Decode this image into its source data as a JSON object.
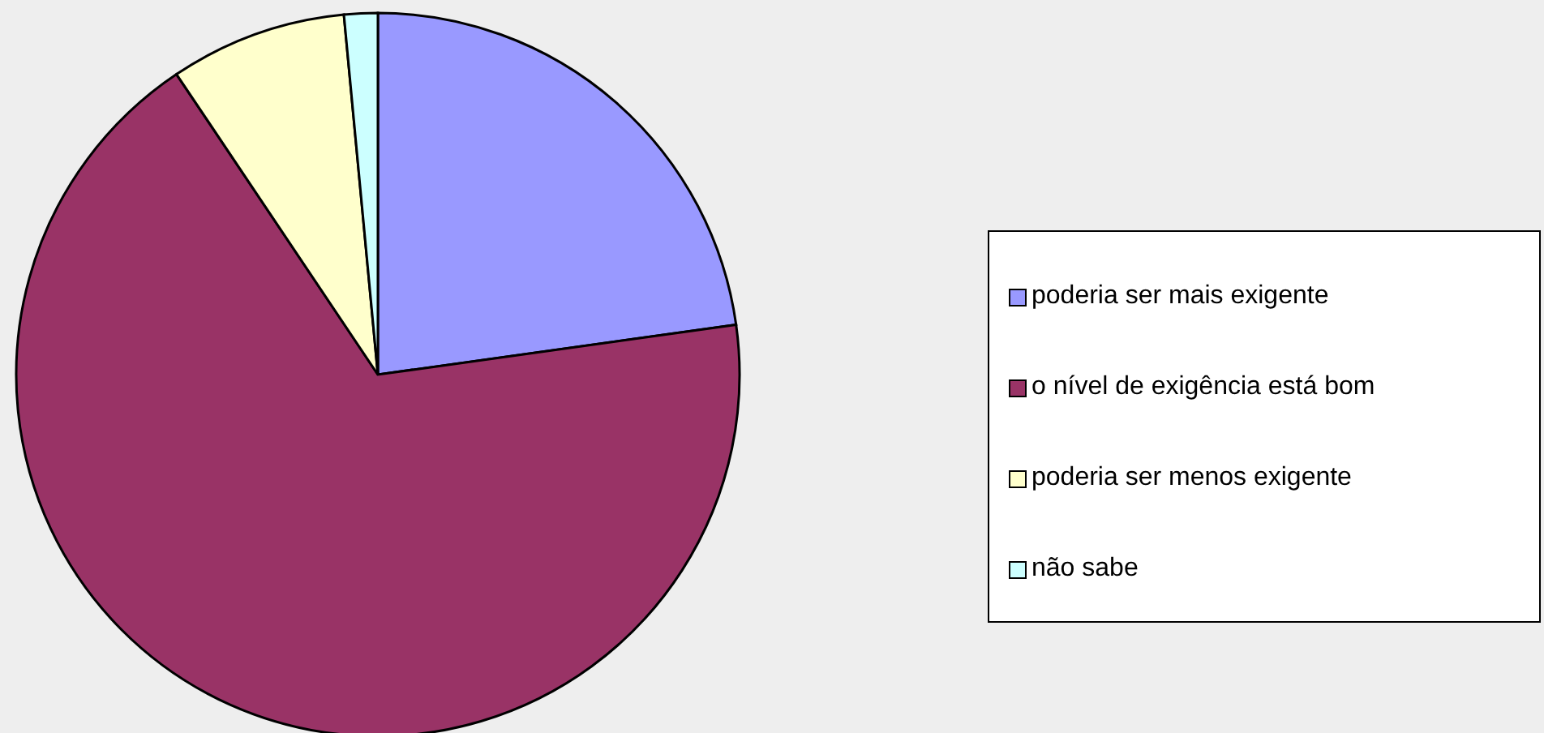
{
  "chart_data": {
    "type": "pie",
    "categories": [
      "poderia ser mais exigente",
      "o nível de exigência está bom",
      "poderia ser menos exigente",
      "não sabe"
    ],
    "values": [
      22.8,
      67.8,
      7.9,
      1.5
    ],
    "colors": [
      "#9999ff",
      "#993366",
      "#ffffcc",
      "#ccffff"
    ],
    "legend": "right"
  }
}
